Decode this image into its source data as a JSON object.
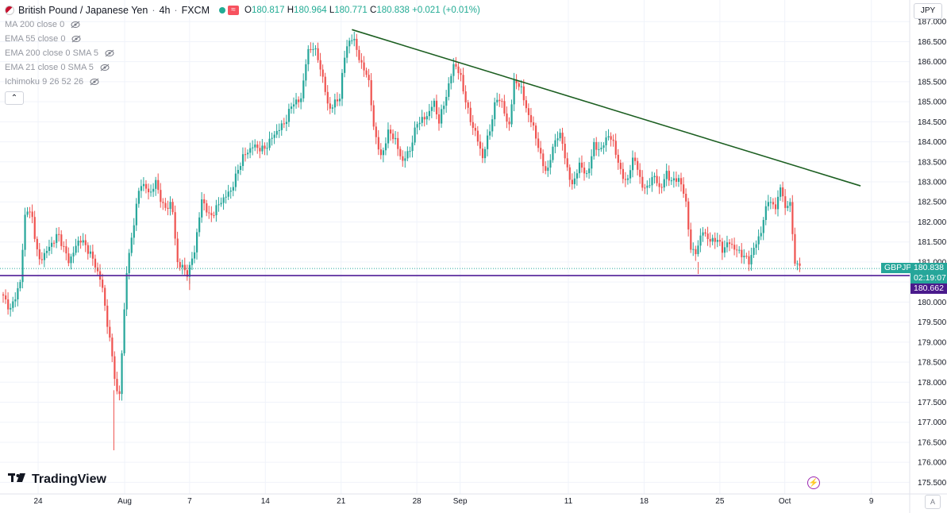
{
  "header": {
    "symbol_title": "British Pound / Japanese Yen",
    "interval": "4h",
    "exchange": "FXCM",
    "wave_badge": "≈",
    "ohlc": {
      "open_label": "O",
      "open": "180.817",
      "high_label": "H",
      "high": "180.964",
      "low_label": "L",
      "low": "180.771",
      "close_label": "C",
      "close": "180.838",
      "change": "+0.021 (+0.01%)"
    }
  },
  "indicators": [
    {
      "label": "MA 200 close 0"
    },
    {
      "label": "EMA 55 close 0"
    },
    {
      "label": "EMA 200 close 0 SMA 5"
    },
    {
      "label": "EMA 21 close 0 SMA 5"
    },
    {
      "label": "Ichimoku 9 26 52 26"
    }
  ],
  "currency_button": "JPY",
  "collapse_icon": "chevron-up-icon",
  "price_tags": {
    "symbol": "GBPJPY",
    "last_price": "180.838",
    "countdown": "02:19:07",
    "horizontal_line_price": "180.662"
  },
  "watermark": "TradingView",
  "colors": {
    "up": "#26a69a",
    "down": "#ef5350",
    "trendline": "#1b5e20",
    "support_line": "#5b2d9e",
    "last_price_tag": "#26a69a",
    "support_tag": "#4a1a8c"
  },
  "chart_data": {
    "type": "candlestick",
    "title": "British Pound / Japanese Yen · 4h · FXCM",
    "ylim": [
      175.25,
      187.5
    ],
    "y_ticks": [
      "175.500",
      "176.000",
      "176.500",
      "177.000",
      "177.500",
      "178.000",
      "178.500",
      "179.000",
      "179.500",
      "180.000",
      "180.500",
      "181.000",
      "181.500",
      "182.000",
      "182.500",
      "183.000",
      "183.500",
      "184.000",
      "184.500",
      "185.000",
      "185.500",
      "186.000",
      "186.500",
      "187.000"
    ],
    "x_ticks": [
      "24",
      "Aug",
      "7",
      "14",
      "21",
      "28",
      "Sep",
      "11",
      "18",
      "25",
      "Oct",
      "9"
    ],
    "x_tick_dates": [
      "Jul 24",
      "Aug 1",
      "Aug 7",
      "Aug 14",
      "Aug 21",
      "Aug 28",
      "Sep 1",
      "Sep 11",
      "Sep 18",
      "Sep 25",
      "Oct 1",
      "Oct 9"
    ],
    "path_points": [
      [
        "Jul 20",
        180.4
      ],
      [
        "Jul 21",
        180.1
      ],
      [
        "Jul 21.6",
        179.8
      ],
      [
        "Jul 22.5",
        180.5
      ],
      [
        "Jul 23",
        182.4
      ],
      [
        "Jul 23.6",
        182.1
      ],
      [
        "Jul 24.2",
        181.0
      ],
      [
        "Jul 25",
        181.3
      ],
      [
        "Jul 26",
        181.7
      ],
      [
        "Jul 27",
        181.0
      ],
      [
        "Jul 28",
        181.6
      ],
      [
        "Jul 29",
        181.2
      ],
      [
        "Jul 30",
        180.5
      ],
      [
        "Jul 31",
        178.6
      ],
      [
        "Jul 31.6",
        177.4
      ],
      [
        "Aug 1.3",
        180.7
      ],
      [
        "Aug 2",
        182.0
      ],
      [
        "Aug 2.6",
        183.0
      ],
      [
        "Aug 3.5",
        182.7
      ],
      [
        "Aug 4",
        183.0
      ],
      [
        "Aug 4.8",
        182.3
      ],
      [
        "Aug 5.5",
        182.5
      ],
      [
        "Aug 6",
        181.0
      ],
      [
        "Aug 7",
        180.7
      ],
      [
        "Aug 7.6",
        181.3
      ],
      [
        "Aug 8.3",
        182.6
      ],
      [
        "Aug 9",
        182.1
      ],
      [
        "Aug 10",
        182.5
      ],
      [
        "Aug 11",
        182.8
      ],
      [
        "Aug 12",
        183.6
      ],
      [
        "Aug 13",
        183.9
      ],
      [
        "Aug 14",
        183.8
      ],
      [
        "Aug 15",
        184.2
      ],
      [
        "Aug 16",
        184.5
      ],
      [
        "Aug 16.7",
        185.0
      ],
      [
        "Aug 17.4",
        185.0
      ],
      [
        "Aug 18",
        186.2
      ],
      [
        "Aug 18.6",
        186.4
      ],
      [
        "Aug 19.3",
        185.8
      ],
      [
        "Aug 20",
        184.8
      ],
      [
        "Aug 21",
        185.1
      ],
      [
        "Aug 21.6",
        186.4
      ],
      [
        "Aug 22.3",
        186.6
      ],
      [
        "Aug 23",
        185.9
      ],
      [
        "Aug 23.6",
        185.7
      ],
      [
        "Aug 24.2",
        184.3
      ],
      [
        "Aug 24.8",
        183.6
      ],
      [
        "Aug 25.6",
        184.3
      ],
      [
        "Aug 26.2",
        184.0
      ],
      [
        "Aug 26.8",
        183.5
      ],
      [
        "Aug 27.5",
        183.8
      ],
      [
        "Aug 28.2",
        184.5
      ],
      [
        "Aug 29",
        184.6
      ],
      [
        "Aug 29.7",
        185.0
      ],
      [
        "Aug 30.2",
        184.5
      ],
      [
        "Aug 31",
        185.3
      ],
      [
        "Aug 31.6",
        186.0
      ],
      [
        "Sep 1.2",
        185.6
      ],
      [
        "Sep 2",
        184.6
      ],
      [
        "Sep 2.6",
        184.2
      ],
      [
        "Sep 3.2",
        183.6
      ],
      [
        "Sep 3.8",
        184.2
      ],
      [
        "Sep 4.5",
        185.1
      ],
      [
        "Sep 5",
        185.0
      ],
      [
        "Sep 5.6",
        184.3
      ],
      [
        "Sep 6.2",
        185.6
      ],
      [
        "Sep 6.8",
        185.3
      ],
      [
        "Sep 7.4",
        184.7
      ],
      [
        "Sep 8",
        184.3
      ],
      [
        "Sep 8.6",
        183.6
      ],
      [
        "Sep 9.2",
        183.2
      ],
      [
        "Sep 9.8",
        184.0
      ],
      [
        "Sep 10.5",
        184.2
      ],
      [
        "Sep 11",
        183.3
      ],
      [
        "Sep 11.6",
        182.9
      ],
      [
        "Sep 12.2",
        183.5
      ],
      [
        "Sep 12.8",
        183.1
      ],
      [
        "Sep 13.5",
        183.9
      ],
      [
        "Sep 14.2",
        183.8
      ],
      [
        "Sep 14.8",
        184.2
      ],
      [
        "Sep 15.4",
        183.9
      ],
      [
        "Sep 16",
        183.2
      ],
      [
        "Sep 16.6",
        183.0
      ],
      [
        "Sep 17.2",
        183.7
      ],
      [
        "Sep 17.8",
        183.0
      ],
      [
        "Sep 18.4",
        182.8
      ],
      [
        "Sep 19",
        183.2
      ],
      [
        "Sep 19.6",
        182.8
      ],
      [
        "Sep 20.2",
        183.2
      ],
      [
        "Sep 20.8",
        183.0
      ],
      [
        "Sep 21.4",
        183.1
      ],
      [
        "Sep 22",
        182.5
      ],
      [
        "Sep 22.5",
        181.2
      ],
      [
        "Sep 23",
        181.3
      ],
      [
        "Sep 23.6",
        181.8
      ],
      [
        "Sep 24.2",
        181.5
      ],
      [
        "Sep 24.8",
        181.6
      ],
      [
        "Sep 25.4",
        181.3
      ],
      [
        "Sep 26",
        181.5
      ],
      [
        "Sep 26.6",
        181.3
      ],
      [
        "Sep 27.2",
        181.2
      ],
      [
        "Sep 27.8",
        181.0
      ],
      [
        "Sep 28.4",
        181.4
      ],
      [
        "Sep 29",
        181.8
      ],
      [
        "Sep 29.6",
        182.6
      ],
      [
        "Oct 0.2",
        182.3
      ],
      [
        "Oct 0.8",
        182.9
      ],
      [
        "Oct 1.2",
        182.3
      ],
      [
        "Oct 1.6",
        182.6
      ],
      [
        "Oct 2",
        181.1
      ],
      [
        "Oct 2.5",
        180.84
      ]
    ],
    "trendline": {
      "start": [
        "Aug 22",
        186.8
      ],
      "end": [
        "Oct 8",
        182.9
      ]
    },
    "horizontal_line": {
      "value": 180.662
    }
  }
}
